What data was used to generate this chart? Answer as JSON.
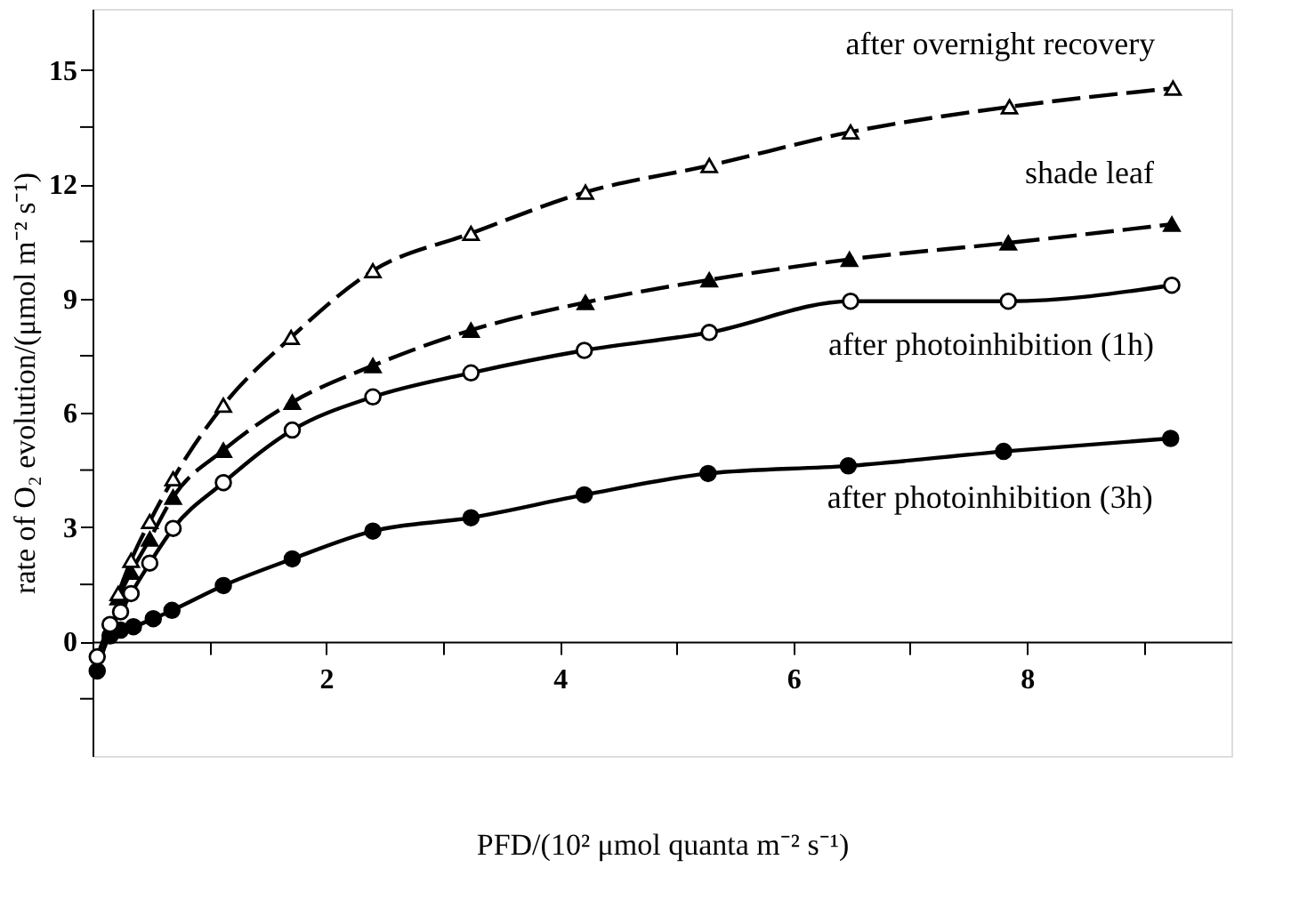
{
  "chart_data": {
    "type": "line",
    "xlabel": "PFD/(10² μmol quanta m⁻² s⁻¹)",
    "ylabel": "rate of O₂ evolution/(μmol m⁻² s⁻¹)",
    "xlim": [
      0,
      9.75
    ],
    "ylim": [
      -3,
      16.6
    ],
    "xticks": [
      {
        "value": 1,
        "label": null
      },
      2,
      {
        "value": 3,
        "label": null
      },
      4,
      {
        "value": 5,
        "label": null
      },
      6,
      {
        "value": 7,
        "label": null
      },
      8,
      {
        "value": 9,
        "label": null
      }
    ],
    "yticks": [
      {
        "value": -1.5,
        "label": null
      },
      0,
      {
        "value": 1.5,
        "label": null
      },
      3,
      {
        "value": 4.5,
        "label": null
      },
      6,
      {
        "value": 7.5,
        "label": null
      },
      9,
      {
        "value": 10.5,
        "label": null
      },
      12,
      {
        "value": 13.5,
        "label": null
      },
      15
    ],
    "grid": false,
    "series": [
      {
        "name": "after overnight recovery",
        "color": "#000000",
        "marker": "triangle",
        "line_style": "dashed",
        "x": [
          0.22,
          0.33,
          0.49,
          0.69,
          1.12,
          1.7,
          2.4,
          3.24,
          4.22,
          5.28,
          6.49,
          7.85,
          9.25
        ],
        "values": [
          1.26,
          2.13,
          3.15,
          4.27,
          6.2,
          7.98,
          9.73,
          10.71,
          11.79,
          12.49,
          13.37,
          14.03,
          14.52
        ]
      },
      {
        "name": "shade leaf",
        "color": "#000000",
        "marker": "triangle",
        "line_style": "dashed",
        "x": [
          0.22,
          0.33,
          0.49,
          0.69,
          1.12,
          1.71,
          2.4,
          3.24,
          4.22,
          5.28,
          6.48,
          7.84,
          9.24
        ],
        "values": [
          1.15,
          1.82,
          2.69,
          3.79,
          5.02,
          6.28,
          7.24,
          8.17,
          8.9,
          9.49,
          10.03,
          10.46,
          10.95
        ]
      },
      {
        "name": "after photoinhibition (1h)",
        "color": "#000000",
        "marker": "circle",
        "line_style": "solid",
        "x": [
          0.04,
          0.15,
          0.24,
          0.33,
          0.49,
          0.69,
          1.12,
          1.71,
          2.4,
          3.24,
          4.21,
          5.28,
          6.49,
          7.84,
          9.24
        ],
        "values": [
          -0.4,
          0.45,
          0.78,
          1.26,
          2.06,
          2.97,
          4.17,
          5.55,
          6.42,
          7.05,
          7.64,
          8.11,
          8.93,
          8.93,
          9.35
        ]
      },
      {
        "name": "after photoinhibition (3h)",
        "color": "#000000",
        "marker": "circle",
        "line_style": "solid",
        "x": [
          0.04,
          0.15,
          0.24,
          0.35,
          0.52,
          0.68,
          1.12,
          1.71,
          2.4,
          3.24,
          4.21,
          5.27,
          6.47,
          7.8,
          9.23
        ],
        "values": [
          -0.77,
          0.15,
          0.3,
          0.39,
          0.6,
          0.82,
          1.47,
          2.17,
          2.9,
          3.25,
          3.85,
          4.41,
          4.61,
          4.99,
          5.33
        ]
      }
    ]
  }
}
